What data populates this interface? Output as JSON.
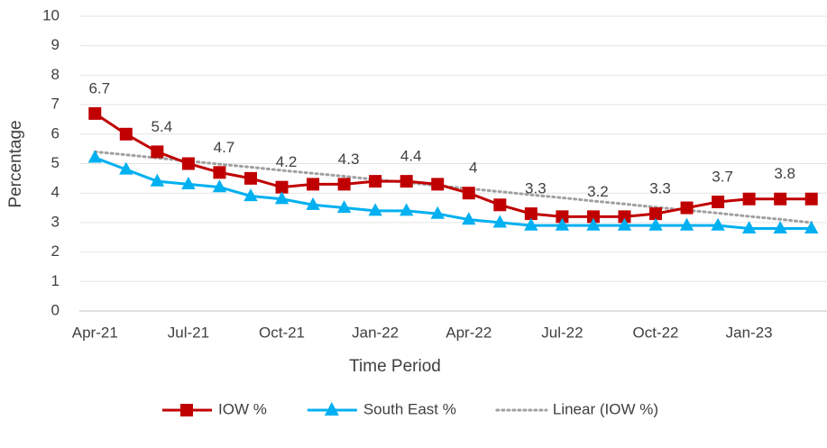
{
  "chart_data": {
    "type": "line",
    "categories": [
      "Apr-21",
      null,
      null,
      "Jul-21",
      null,
      null,
      "Oct-21",
      null,
      null,
      "Jan-22",
      null,
      null,
      "Apr-22",
      null,
      null,
      "Jul-22",
      null,
      null,
      "Oct-22",
      null,
      null,
      "Jan-23",
      null,
      null
    ],
    "series": [
      {
        "name": "IOW %",
        "color": "#c00000",
        "marker": "square",
        "values": [
          6.7,
          6.0,
          5.4,
          5.0,
          4.7,
          4.5,
          4.2,
          4.3,
          4.3,
          4.4,
          4.4,
          4.3,
          4.0,
          3.6,
          3.3,
          3.2,
          3.2,
          3.2,
          3.3,
          3.5,
          3.7,
          3.8,
          3.8,
          3.8
        ],
        "value_labels": [
          "6.7",
          null,
          "5.4",
          null,
          "4.7",
          null,
          "4.2",
          null,
          "4.3",
          null,
          "4.4",
          null,
          "4",
          null,
          "3.3",
          null,
          "3.2",
          null,
          "3.3",
          null,
          "3.7",
          null,
          "3.8",
          null
        ]
      },
      {
        "name": "South East %",
        "color": "#00b0f0",
        "marker": "triangle",
        "values": [
          5.2,
          4.8,
          4.4,
          4.3,
          4.2,
          3.9,
          3.8,
          3.6,
          3.5,
          3.4,
          3.4,
          3.3,
          3.1,
          3.0,
          2.9,
          2.9,
          2.9,
          2.9,
          2.9,
          2.9,
          2.9,
          2.8,
          2.8,
          2.8
        ]
      },
      {
        "name": "Linear (IOW %)",
        "color": "#a0a0a0",
        "dash": "dotted",
        "values": [
          5.4,
          5.3,
          5.19,
          5.09,
          4.98,
          4.88,
          4.77,
          4.67,
          4.57,
          4.46,
          4.36,
          4.25,
          4.15,
          4.05,
          3.94,
          3.84,
          3.73,
          3.63,
          3.52,
          3.42,
          3.32,
          3.21,
          3.11,
          3.0
        ]
      }
    ],
    "x_label": "Time Period",
    "y_label": "Percentage",
    "ylim": [
      0,
      10
    ],
    "yticks": [
      0,
      1,
      2,
      3,
      4,
      5,
      6,
      7,
      8,
      9,
      10
    ],
    "grid": true,
    "legend": "bottom"
  }
}
